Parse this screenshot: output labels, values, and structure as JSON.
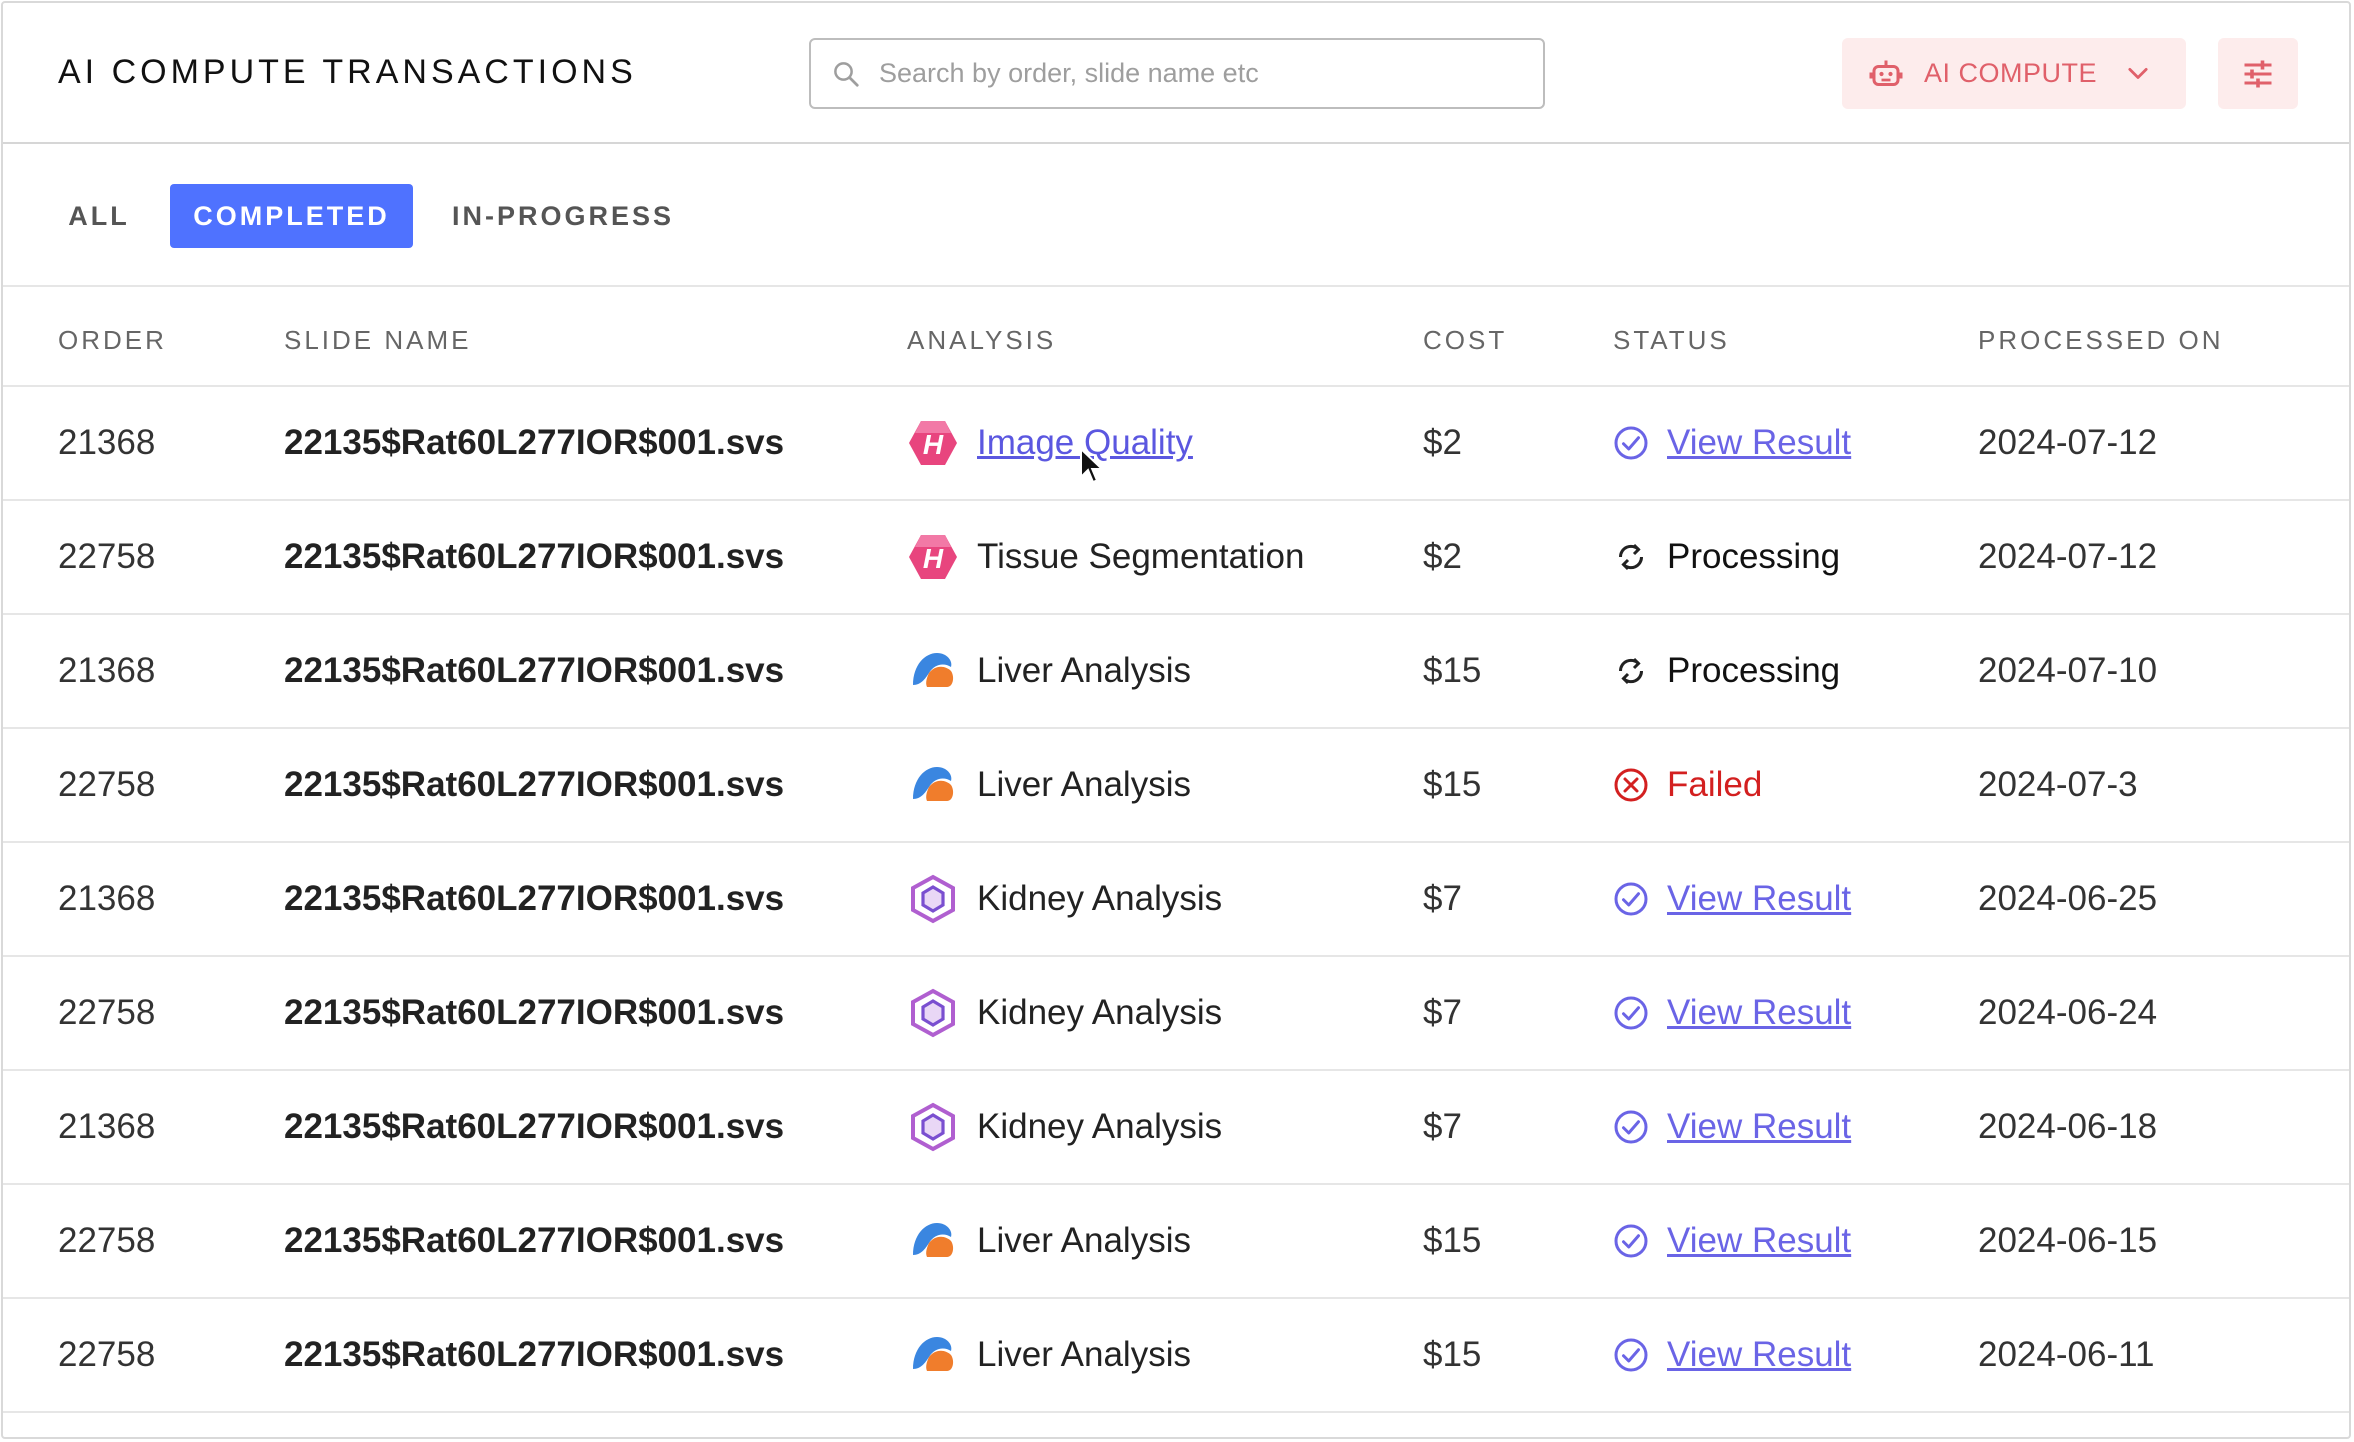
{
  "header": {
    "title": "AI COMPUTE TRANSACTIONS",
    "search_placeholder": "Search by order, slide name etc",
    "ai_compute_label": "AI COMPUTE"
  },
  "tabs": [
    {
      "label": "ALL",
      "active": false
    },
    {
      "label": "COMPLETED",
      "active": true
    },
    {
      "label": "IN-PROGRESS",
      "active": false
    }
  ],
  "columns": [
    "ORDER",
    "SLIDE NAME",
    "ANALYSIS",
    "COST",
    "STATUS",
    "PROCESSED ON"
  ],
  "rows": [
    {
      "order": "21368",
      "slide": "22135$Rat60L277IOR$001.svs",
      "analysis": "Image Quality",
      "analysis_icon": "image-quality-icon",
      "analysis_link": true,
      "cost": "$2",
      "status": "View Result",
      "status_type": "result",
      "date": "2024-07-12"
    },
    {
      "order": "22758",
      "slide": "22135$Rat60L277IOR$001.svs",
      "analysis": "Tissue Segmentation",
      "analysis_icon": "image-quality-icon",
      "analysis_link": false,
      "cost": "$2",
      "status": "Processing",
      "status_type": "processing",
      "date": "2024-07-12"
    },
    {
      "order": "21368",
      "slide": "22135$Rat60L277IOR$001.svs",
      "analysis": "Liver Analysis",
      "analysis_icon": "liver-icon",
      "analysis_link": false,
      "cost": "$15",
      "status": "Processing",
      "status_type": "processing",
      "date": "2024-07-10"
    },
    {
      "order": "22758",
      "slide": "22135$Rat60L277IOR$001.svs",
      "analysis": "Liver Analysis",
      "analysis_icon": "liver-icon",
      "analysis_link": false,
      "cost": "$15",
      "status": "Failed",
      "status_type": "failed",
      "date": "2024-07-3"
    },
    {
      "order": "21368",
      "slide": "22135$Rat60L277IOR$001.svs",
      "analysis": "Kidney Analysis",
      "analysis_icon": "kidney-icon",
      "analysis_link": false,
      "cost": "$7",
      "status": "View Result",
      "status_type": "result",
      "date": "2024-06-25"
    },
    {
      "order": "22758",
      "slide": "22135$Rat60L277IOR$001.svs",
      "analysis": "Kidney Analysis",
      "analysis_icon": "kidney-icon",
      "analysis_link": false,
      "cost": "$7",
      "status": "View Result",
      "status_type": "result",
      "date": "2024-06-24"
    },
    {
      "order": "21368",
      "slide": "22135$Rat60L277IOR$001.svs",
      "analysis": "Kidney Analysis",
      "analysis_icon": "kidney-icon",
      "analysis_link": false,
      "cost": "$7",
      "status": "View Result",
      "status_type": "result",
      "date": "2024-06-18"
    },
    {
      "order": "22758",
      "slide": "22135$Rat60L277IOR$001.svs",
      "analysis": "Liver Analysis",
      "analysis_icon": "liver-icon",
      "analysis_link": false,
      "cost": "$15",
      "status": "View Result",
      "status_type": "result",
      "date": "2024-06-15"
    },
    {
      "order": "22758",
      "slide": "22135$Rat60L277IOR$001.svs",
      "analysis": "Liver Analysis",
      "analysis_icon": "liver-icon",
      "analysis_link": false,
      "cost": "$15",
      "status": "View Result",
      "status_type": "result",
      "date": "2024-06-11"
    }
  ],
  "colors": {
    "accent": "#4f72ff",
    "link": "#6a64e6",
    "failed": "#d32020",
    "ai_button_bg": "#fdecec",
    "ai_button_text": "#e0606a"
  }
}
